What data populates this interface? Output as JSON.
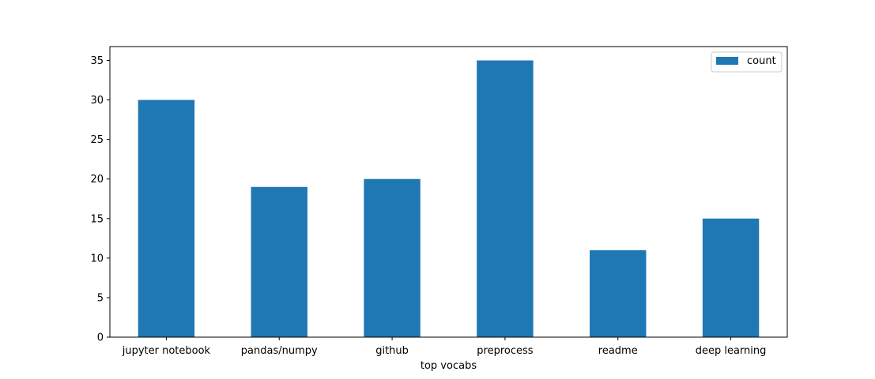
{
  "chart_data": {
    "type": "bar",
    "categories": [
      "jupyter notebook",
      "pandas/numpy",
      "github",
      "preprocess",
      "readme",
      "deep learning"
    ],
    "series": [
      {
        "name": "count",
        "values": [
          30,
          19,
          20,
          35,
          11,
          15
        ],
        "color": "#1f77b4"
      }
    ],
    "xlabel": "top vocabs",
    "ylabel": "",
    "ylim": [
      0,
      36.75
    ],
    "yticks": [
      0,
      5,
      10,
      15,
      20,
      25,
      30,
      35
    ],
    "grid": false,
    "legend_position": "top-right"
  }
}
